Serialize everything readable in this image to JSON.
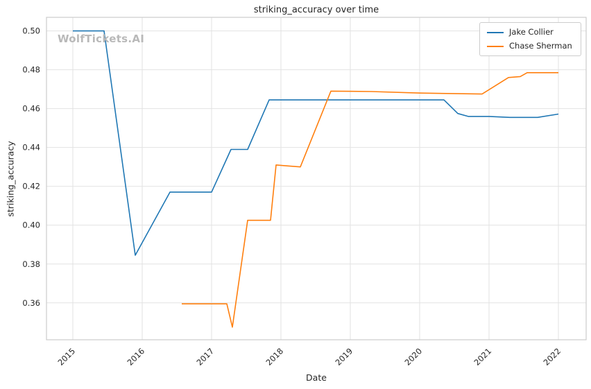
{
  "chart_data": {
    "type": "line",
    "title": "striking_accuracy over time",
    "xlabel": "Date",
    "ylabel": "striking_accuracy",
    "watermark": "WolfTickets.AI",
    "grid": true,
    "legend_position": "upper right",
    "xlim": [
      2014.62,
      2022.4
    ],
    "ylim": [
      0.341,
      0.507
    ],
    "x_ticks": [
      2015,
      2016,
      2017,
      2018,
      2019,
      2020,
      2021,
      2022
    ],
    "y_ticks": [
      0.36,
      0.38,
      0.4,
      0.42,
      0.44,
      0.46,
      0.48,
      0.5
    ],
    "colors": {
      "grid": "#e2e2e2",
      "spine": "#cccccc",
      "text": "#262626",
      "watermark": "#b9b9b9",
      "background": "#ffffff"
    },
    "series": [
      {
        "name": "Jake Collier",
        "color": "#1f77b4",
        "points": [
          [
            2015.0,
            0.5
          ],
          [
            2015.45,
            0.5
          ],
          [
            2015.9,
            0.3845
          ],
          [
            2016.4,
            0.417
          ],
          [
            2017.0,
            0.417
          ],
          [
            2017.28,
            0.439
          ],
          [
            2017.52,
            0.439
          ],
          [
            2017.83,
            0.4645
          ],
          [
            2020.35,
            0.4645
          ],
          [
            2020.55,
            0.4575
          ],
          [
            2020.7,
            0.456
          ],
          [
            2021.0,
            0.456
          ],
          [
            2021.3,
            0.4555
          ],
          [
            2021.7,
            0.4555
          ],
          [
            2022.0,
            0.4572
          ]
        ]
      },
      {
        "name": "Chase Sherman",
        "color": "#ff7f0e",
        "points": [
          [
            2016.57,
            0.3595
          ],
          [
            2017.22,
            0.3595
          ],
          [
            2017.3,
            0.3475
          ],
          [
            2017.52,
            0.4025
          ],
          [
            2017.85,
            0.4025
          ],
          [
            2017.93,
            0.431
          ],
          [
            2018.1,
            0.4305
          ],
          [
            2018.28,
            0.43
          ],
          [
            2018.72,
            0.469
          ],
          [
            2019.3,
            0.4688
          ],
          [
            2020.0,
            0.468
          ],
          [
            2020.9,
            0.4675
          ],
          [
            2021.28,
            0.476
          ],
          [
            2021.45,
            0.4765
          ],
          [
            2021.55,
            0.4785
          ],
          [
            2022.0,
            0.4785
          ]
        ]
      }
    ]
  }
}
